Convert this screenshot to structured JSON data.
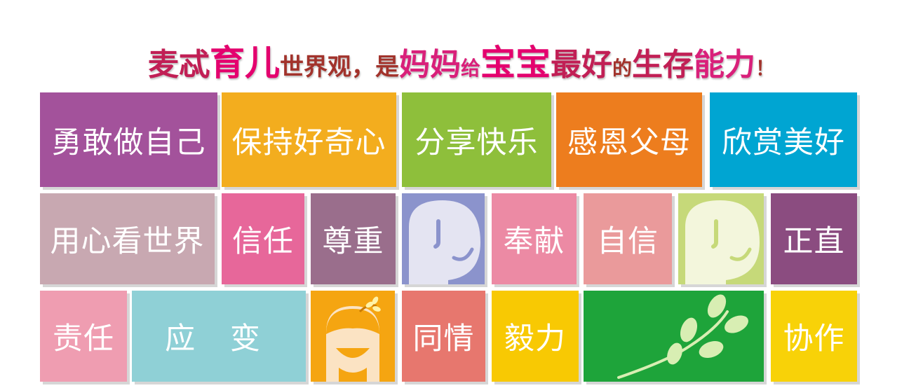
{
  "headline": {
    "p1": "麦忒",
    "p2": "育儿",
    "p3": "世界观，是",
    "p4": "妈妈",
    "p5": "给",
    "p6": "宝宝",
    "p7": "最好",
    "p8": "的",
    "p9": "生存",
    "p10": "能力",
    "p11": "！"
  },
  "row1": [
    "勇敢做自己",
    "保持好奇心",
    "分享快乐",
    "感恩父母",
    "欣赏美好"
  ],
  "row2": [
    "用心看世界",
    "信任",
    "尊重",
    "奉献",
    "自信",
    "正直"
  ],
  "row3": [
    "责任",
    "应 变",
    "同情",
    "毅力",
    "协作"
  ],
  "icons": [
    "face-profile-icon",
    "face-profile-icon",
    "girl-face-icon",
    "leaf-sprig-icon"
  ],
  "colors": {
    "purple": "#a3529b",
    "amber": "#f3ad1e",
    "green": "#8ebf3b",
    "orange": "#ed7d1e",
    "cyan": "#00a5d2",
    "mauve": "#c8a8b1",
    "pink": "#e7679a",
    "plum": "#9a6e8c",
    "periwinkle": "#8b93cc",
    "rose": "#ec8aa4",
    "salmon": "#ea9a9b",
    "lime": "#c6d979",
    "berry": "#8b4c80",
    "lightpink": "#ef9db1",
    "teal": "#8fd0d6",
    "goldorange": "#f5a511",
    "coral": "#e7776e",
    "yellow": "#f8c903",
    "leafgreen": "#1ea43a",
    "sun": "#f8d208"
  }
}
